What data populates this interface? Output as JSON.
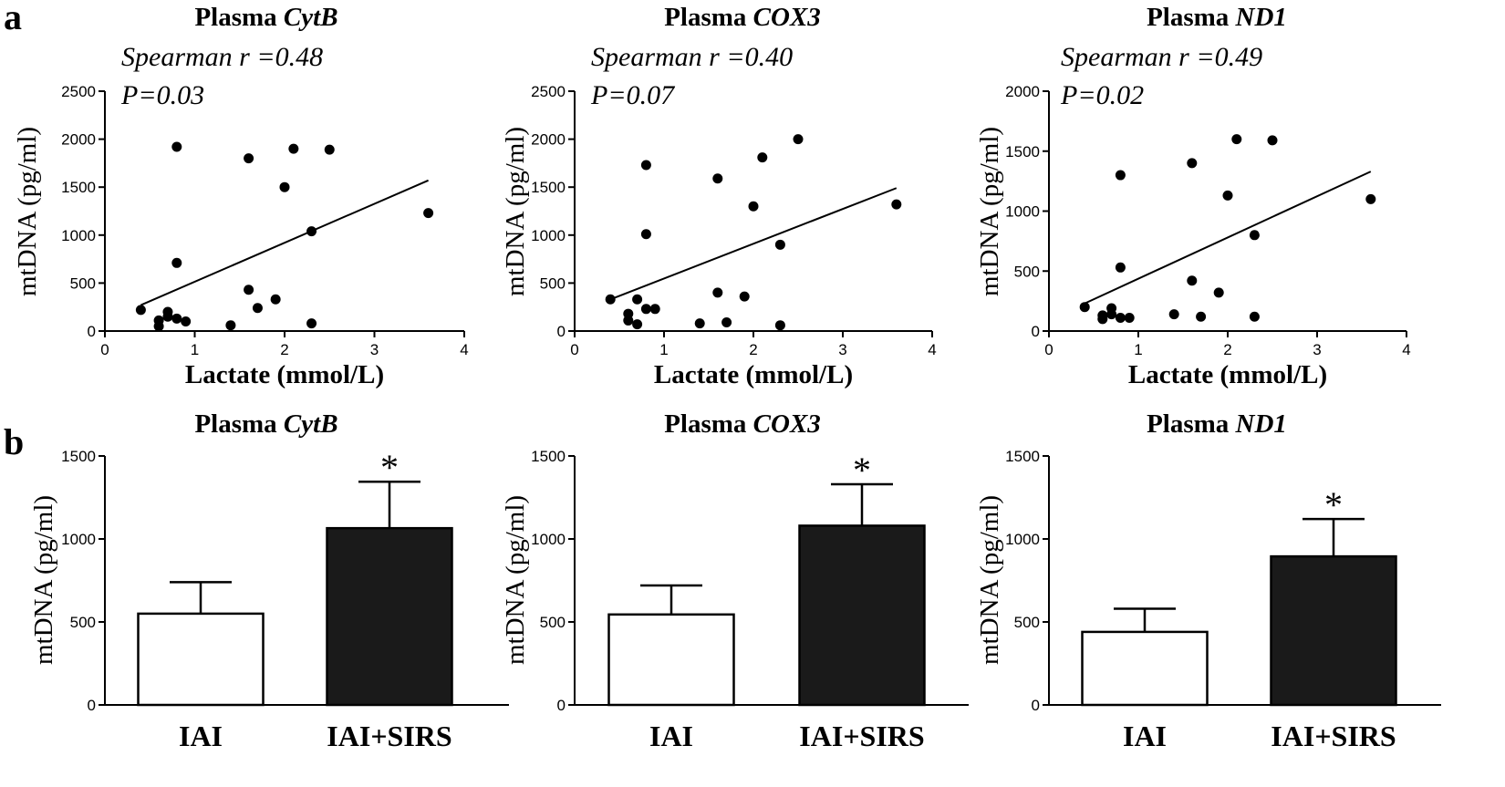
{
  "panel_labels": {
    "a": "a",
    "b": "b"
  },
  "colors": {
    "ink": "#000000",
    "bar_iai": "#ffffff",
    "bar_sirs": "#1a1a1a"
  },
  "chart_data": [
    {
      "type": "scatter",
      "title_prefix": "Plasma ",
      "title_gene": "CytB",
      "stat_r": "Spearman r =0.48",
      "stat_p": "P=0.03",
      "xlabel": "Lactate (mmol/L)",
      "ylabel": "mtDNA (pg/ml)",
      "xlim": [
        0,
        4
      ],
      "ylim": [
        0,
        2500
      ],
      "xticks": [
        0,
        1,
        2,
        3,
        4
      ],
      "yticks": [
        0,
        500,
        1000,
        1500,
        2000,
        2500
      ],
      "points": [
        [
          0.4,
          220
        ],
        [
          0.6,
          50
        ],
        [
          0.6,
          110
        ],
        [
          0.7,
          200
        ],
        [
          0.7,
          150
        ],
        [
          0.8,
          130
        ],
        [
          0.8,
          1920
        ],
        [
          0.8,
          710
        ],
        [
          0.9,
          100
        ],
        [
          1.4,
          60
        ],
        [
          1.6,
          1800
        ],
        [
          1.6,
          430
        ],
        [
          1.7,
          240
        ],
        [
          1.9,
          330
        ],
        [
          2.0,
          1500
        ],
        [
          2.1,
          1900
        ],
        [
          2.3,
          80
        ],
        [
          2.3,
          1040
        ],
        [
          2.5,
          1890
        ],
        [
          3.6,
          1230
        ]
      ],
      "fit": [
        [
          0.4,
          270
        ],
        [
          3.6,
          1570
        ]
      ]
    },
    {
      "type": "scatter",
      "title_prefix": "Plasma ",
      "title_gene": "COX3",
      "stat_r": "Spearman r =0.40",
      "stat_p": "P=0.07",
      "xlabel": "Lactate (mmol/L)",
      "ylabel": "mtDNA (pg/ml)",
      "xlim": [
        0,
        4
      ],
      "ylim": [
        0,
        2500
      ],
      "xticks": [
        0,
        1,
        2,
        3,
        4
      ],
      "yticks": [
        0,
        500,
        1000,
        1500,
        2000,
        2500
      ],
      "points": [
        [
          0.4,
          330
        ],
        [
          0.6,
          180
        ],
        [
          0.6,
          110
        ],
        [
          0.7,
          330
        ],
        [
          0.7,
          70
        ],
        [
          0.8,
          230
        ],
        [
          0.8,
          1730
        ],
        [
          0.8,
          1010
        ],
        [
          0.9,
          230
        ],
        [
          1.4,
          80
        ],
        [
          1.6,
          1590
        ],
        [
          1.6,
          400
        ],
        [
          1.7,
          90
        ],
        [
          1.9,
          360
        ],
        [
          2.0,
          1300
        ],
        [
          2.1,
          1810
        ],
        [
          2.3,
          60
        ],
        [
          2.3,
          900
        ],
        [
          2.5,
          2000
        ],
        [
          3.6,
          1320
        ]
      ],
      "fit": [
        [
          0.4,
          330
        ],
        [
          3.6,
          1490
        ]
      ]
    },
    {
      "type": "scatter",
      "title_prefix": "Plasma ",
      "title_gene": "ND1",
      "stat_r": "Spearman r =0.49",
      "stat_p": "P=0.02",
      "xlabel": "Lactate (mmol/L)",
      "ylabel": "mtDNA (pg/ml)",
      "xlim": [
        0,
        4
      ],
      "ylim": [
        0,
        2000
      ],
      "xticks": [
        0,
        1,
        2,
        3,
        4
      ],
      "yticks": [
        0,
        500,
        1000,
        1500,
        2000
      ],
      "points": [
        [
          0.4,
          200
        ],
        [
          0.6,
          130
        ],
        [
          0.6,
          100
        ],
        [
          0.7,
          190
        ],
        [
          0.7,
          140
        ],
        [
          0.8,
          110
        ],
        [
          0.8,
          1300
        ],
        [
          0.8,
          530
        ],
        [
          0.9,
          110
        ],
        [
          1.4,
          140
        ],
        [
          1.6,
          1400
        ],
        [
          1.6,
          420
        ],
        [
          1.7,
          120
        ],
        [
          1.9,
          320
        ],
        [
          2.0,
          1130
        ],
        [
          2.1,
          1600
        ],
        [
          2.3,
          120
        ],
        [
          2.3,
          800
        ],
        [
          2.5,
          1590
        ],
        [
          3.6,
          1100
        ]
      ],
      "fit": [
        [
          0.4,
          230
        ],
        [
          3.6,
          1330
        ]
      ]
    },
    {
      "type": "bar",
      "title_prefix": "Plasma ",
      "title_gene": "CytB",
      "ylabel": "mtDNA (pg/ml)",
      "ylim": [
        0,
        1500
      ],
      "yticks": [
        0,
        500,
        1000,
        1500
      ],
      "categories": [
        "IAI",
        "IAI+SIRS"
      ],
      "values": [
        550,
        1065
      ],
      "errors": [
        190,
        280
      ],
      "annotations": [
        "",
        "*"
      ]
    },
    {
      "type": "bar",
      "title_prefix": "Plasma ",
      "title_gene": "COX3",
      "ylabel": "mtDNA (pg/ml)",
      "ylim": [
        0,
        1500
      ],
      "yticks": [
        0,
        500,
        1000,
        1500
      ],
      "categories": [
        "IAI",
        "IAI+SIRS"
      ],
      "values": [
        545,
        1080
      ],
      "errors": [
        175,
        250
      ],
      "annotations": [
        "",
        "*"
      ]
    },
    {
      "type": "bar",
      "title_prefix": "Plasma ",
      "title_gene": "ND1",
      "ylabel": "mtDNA (pg/ml)",
      "ylim": [
        0,
        1500
      ],
      "yticks": [
        0,
        500,
        1000,
        1500
      ],
      "categories": [
        "IAI",
        "IAI+SIRS"
      ],
      "values": [
        440,
        895
      ],
      "errors": [
        140,
        225
      ],
      "annotations": [
        "",
        "*"
      ]
    }
  ]
}
